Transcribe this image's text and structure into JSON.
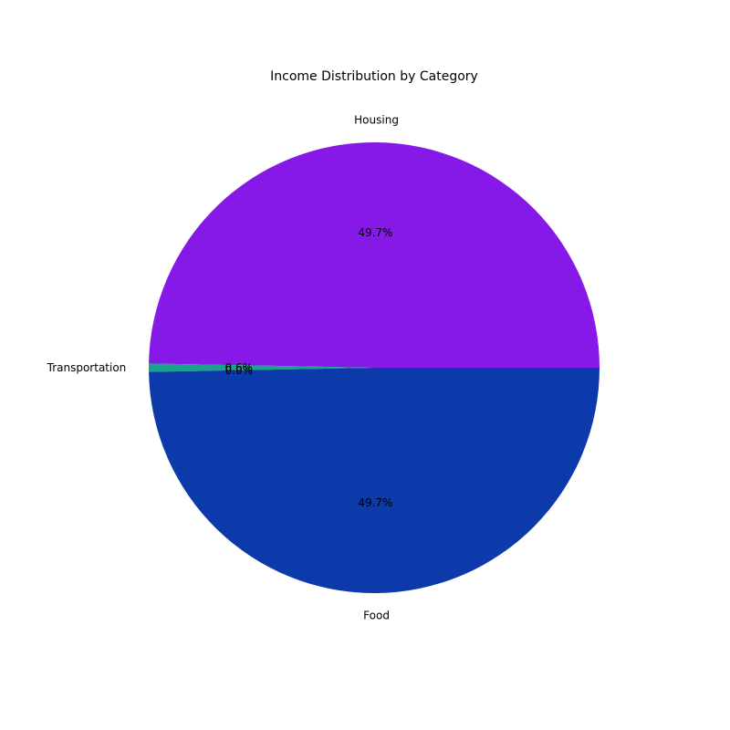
{
  "chart_data": {
    "type": "pie",
    "title": "Income Distribution by Category",
    "slices": [
      {
        "label": "Housing",
        "value": 49.7,
        "pct_label": "49.7%",
        "color": "#8719e8"
      },
      {
        "label": "Transportation",
        "value": 0.6,
        "pct_label": "0.6%",
        "color": "#1ba18d"
      },
      {
        "label": "",
        "value": 0.0,
        "pct_label": "0.0%",
        "color": "#1ba18d"
      },
      {
        "label": "Food",
        "value": 49.7,
        "pct_label": "49.7%",
        "color": "#0d3aaa"
      }
    ],
    "legend": "none"
  }
}
